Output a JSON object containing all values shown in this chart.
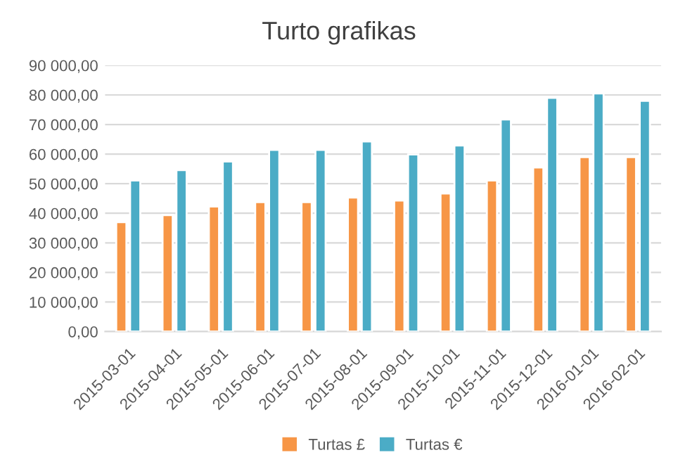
{
  "chart_data": {
    "type": "bar",
    "title": "Turto grafikas",
    "categories": [
      "2015-03-01",
      "2015-04-01",
      "2015-05-01",
      "2015-06-01",
      "2015-07-01",
      "2015-08-01",
      "2015-09-01",
      "2015-10-01",
      "2015-11-01",
      "2015-12-01",
      "2016-01-01",
      "2016-02-01"
    ],
    "series": [
      {
        "name": "Turtas £",
        "color": "#f79646",
        "values": [
          37000,
          39400,
          42300,
          43800,
          43800,
          45300,
          44300,
          46700,
          51100,
          55500,
          59000,
          59000
        ]
      },
      {
        "name": "Turtas €",
        "color": "#4bacc6",
        "values": [
          51100,
          54600,
          57500,
          61400,
          61400,
          64300,
          59900,
          62900,
          71700,
          79000,
          80500,
          78000
        ]
      }
    ],
    "ylim": [
      0,
      90000
    ],
    "yticks": [
      {
        "value": 0,
        "label": "0,00"
      },
      {
        "value": 10000,
        "label": "10 000,00"
      },
      {
        "value": 20000,
        "label": "20 000,00"
      },
      {
        "value": 30000,
        "label": "30 000,00"
      },
      {
        "value": 40000,
        "label": "40 000,00"
      },
      {
        "value": 50000,
        "label": "50 000,00"
      },
      {
        "value": 60000,
        "label": "60 000,00"
      },
      {
        "value": 70000,
        "label": "70 000,00"
      },
      {
        "value": 80000,
        "label": "80 000,00"
      },
      {
        "value": 90000,
        "label": "90 000,00"
      }
    ],
    "grid": "y",
    "legend": "bottom"
  }
}
